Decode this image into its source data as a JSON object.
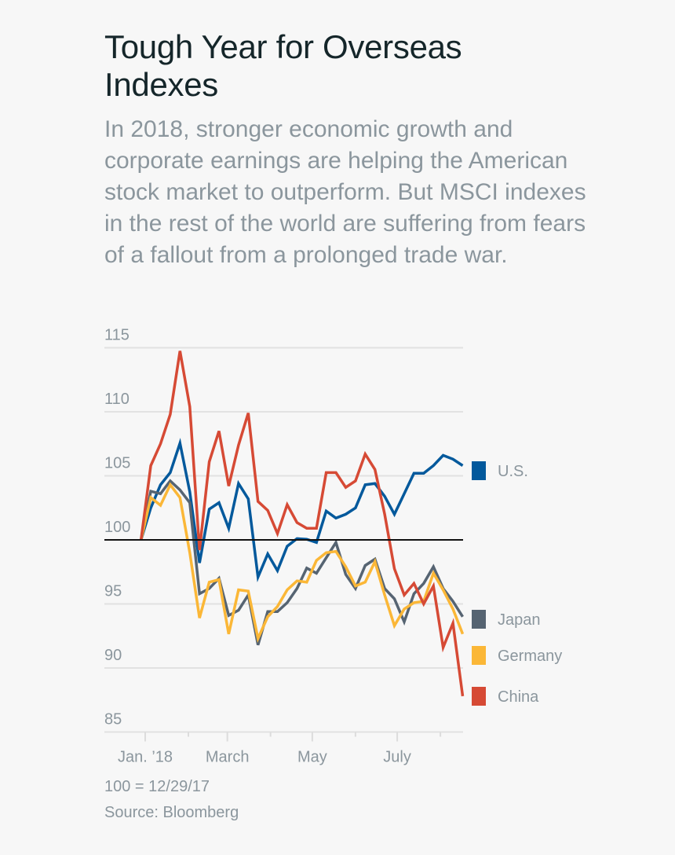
{
  "title": "Tough Year for Overseas Indexes",
  "subtitle": "In 2018, stronger economic growth and corporate earnings are helping the American stock market to outperform. But MSCI indexes in the rest of the world are suffering from fears of a fallout from a prolonged trade war.",
  "footnote": "100 = 12/29/17",
  "source": "Source: Bloomberg",
  "chart_data": {
    "type": "line",
    "title": "Tough Year for Overseas Indexes",
    "xlabel": "",
    "ylabel": "",
    "ylim": [
      84,
      116
    ],
    "yticks": [
      85,
      90,
      95,
      100,
      105,
      110,
      115
    ],
    "ytick_labels": [
      "85",
      "90",
      "95",
      "100",
      "105",
      "110",
      "115"
    ],
    "xtick_labels": [
      {
        "date": "2018-01-01",
        "label": "Jan. ’18"
      },
      {
        "date": "2018-03-01",
        "label": "March"
      },
      {
        "date": "2018-05-01",
        "label": "May"
      },
      {
        "date": "2018-07-01",
        "label": "July"
      }
    ],
    "minor_xticks": [
      "2018-02-01",
      "2018-04-01",
      "2018-06-01",
      "2018-08-01"
    ],
    "baseline": 100,
    "grid": true,
    "legend_placement": "right, at line ends",
    "x": [
      "2017-12-29",
      "2018-01-05",
      "2018-01-12",
      "2018-01-19",
      "2018-01-26",
      "2018-02-02",
      "2018-02-09",
      "2018-02-16",
      "2018-02-23",
      "2018-03-02",
      "2018-03-09",
      "2018-03-16",
      "2018-03-23",
      "2018-03-30",
      "2018-04-06",
      "2018-04-13",
      "2018-04-20",
      "2018-04-27",
      "2018-05-04",
      "2018-05-11",
      "2018-05-18",
      "2018-05-25",
      "2018-06-01",
      "2018-06-08",
      "2018-06-15",
      "2018-06-22",
      "2018-06-29",
      "2018-07-06",
      "2018-07-13",
      "2018-07-20",
      "2018-07-27",
      "2018-08-03",
      "2018-08-10",
      "2018-08-17"
    ],
    "series": [
      {
        "name": "U.S.",
        "color": "#03599c",
        "values": [
          100,
          102.5,
          104.3,
          105.25,
          107.55,
          103.75,
          98.2,
          102.4,
          102.9,
          100.9,
          104.4,
          103.2,
          97.1,
          98.9,
          97.6,
          99.5,
          100.1,
          100.05,
          99.8,
          102.25,
          101.7,
          102,
          102.5,
          104.3,
          104.4,
          103.4,
          102,
          103.6,
          105.2,
          105.2,
          105.8,
          106.6,
          106.3,
          105.8
        ]
      },
      {
        "name": "Japan",
        "color": "#566472",
        "values": [
          100,
          103.8,
          103.6,
          104.6,
          103.9,
          102.9,
          95.8,
          96.2,
          97,
          94.1,
          94.5,
          95.7,
          91.8,
          94.4,
          94.4,
          95.1,
          96.2,
          97.8,
          97.4,
          98.6,
          99.8,
          97.3,
          96.2,
          98,
          98.5,
          96.2,
          95.4,
          93.6,
          95.8,
          96.6,
          97.9,
          96.2,
          95.2,
          94
        ]
      },
      {
        "name": "Germany",
        "color": "#fbb737",
        "values": [
          100,
          103.3,
          102.7,
          104.3,
          103.3,
          99,
          93.9,
          96.7,
          96.9,
          92.65,
          96.1,
          96,
          92.3,
          94,
          94.8,
          96.1,
          96.8,
          96.7,
          98.4,
          99,
          99.1,
          97.9,
          96.4,
          96.7,
          98.3,
          95.7,
          93.3,
          94.6,
          95.1,
          95.2,
          97.4,
          96.1,
          94.6,
          92.65
        ]
      },
      {
        "name": "China",
        "color": "#d64a35",
        "values": [
          100,
          105.8,
          107.5,
          109.8,
          114.75,
          110.4,
          99.2,
          106.1,
          108.5,
          104.2,
          107.4,
          109.9,
          103,
          102.3,
          100.5,
          102.75,
          101.35,
          100.9,
          100.9,
          105.25,
          105.25,
          104.1,
          104.6,
          106.7,
          105.5,
          102,
          97.75,
          95.7,
          96.6,
          95,
          96.4,
          91.6,
          93.5,
          87.8
        ]
      }
    ]
  }
}
